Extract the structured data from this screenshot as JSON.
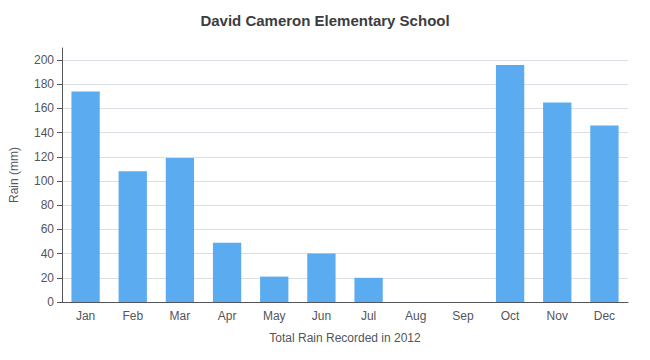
{
  "chart_data": {
    "type": "bar",
    "title": "David Cameron Elementary School",
    "xlabel": "Total Rain Recorded in 2012",
    "ylabel": "Rain (mm)",
    "categories": [
      "Jan",
      "Feb",
      "Mar",
      "Apr",
      "May",
      "Jun",
      "Jul",
      "Aug",
      "Sep",
      "Oct",
      "Nov",
      "Dec"
    ],
    "values": [
      174,
      108,
      119,
      49,
      21,
      40,
      20,
      0,
      0,
      196,
      165,
      146
    ],
    "color": "#5aabf0",
    "ylim": [
      0,
      210
    ],
    "yticks": [
      0,
      20,
      40,
      60,
      80,
      100,
      120,
      140,
      160,
      180,
      200
    ],
    "grid": true
  }
}
